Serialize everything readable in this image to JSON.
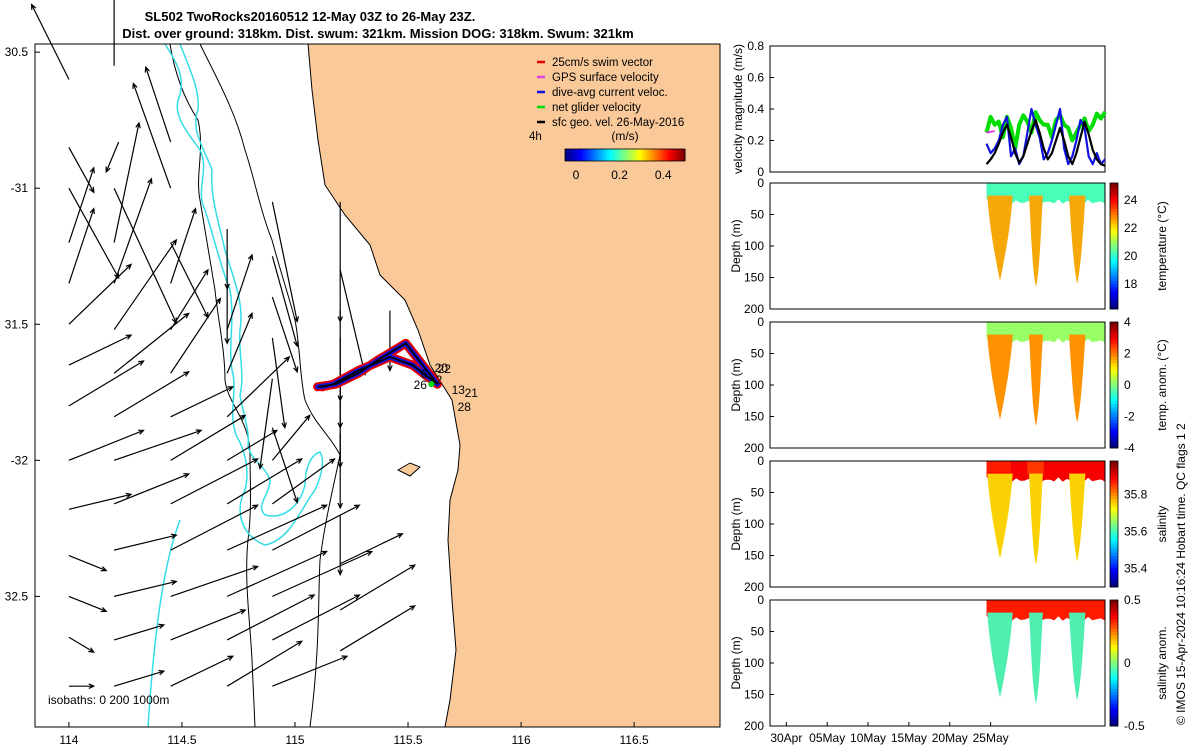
{
  "header": {
    "title_line1": "SL502 TwoRocks20160512 12-May 03Z to 26-May 23Z.",
    "title_line2": "Dist. over ground: 318km. Dist. swum: 321km. Mission DOG: 318km. Swum: 321km"
  },
  "credit": "© IMOS 15-Apr-2024 10:16:24 Hobart time. QC flags 1  2",
  "colors": {
    "land": "#F9C99A",
    "ocean": "#FFFFFF",
    "coast": "#000000",
    "isobath": "#000000",
    "shallow_isobath": "#33DDE6",
    "swim": "#E00000",
    "gps": "#E040E0",
    "dive": "#1010E0",
    "net": "#00DD00",
    "geo": "#000000"
  },
  "chart_data": [
    {
      "type": "map",
      "title": "Glider track and surface geostrophic velocity",
      "xlim": [
        113.85,
        116.88
      ],
      "ylim": [
        -32.98,
        -30.47
      ],
      "x_ticks": [
        114,
        114.5,
        115,
        115.5,
        116,
        116.5
      ],
      "x_tick_labels": [
        "114",
        "114.5",
        "115",
        "115.5",
        "116",
        "116.5"
      ],
      "y_ticks": [
        -30.5,
        -31,
        -31.5,
        -32,
        -32.5
      ],
      "y_tick_labels": [
        "30.5",
        "-31",
        "31.5",
        "-32",
        "32.5"
      ],
      "legend": [
        {
          "label": "25cm/s swim vector",
          "key": "swim"
        },
        {
          "label": "GPS surface velocity",
          "key": "gps"
        },
        {
          "label": "dive-avg current veloc.",
          "key": "dive"
        },
        {
          "label": "net glider velocity",
          "key": "net"
        },
        {
          "label": "sfc geo. vel. 26-May-2016",
          "key": "geo"
        }
      ],
      "legend_scale_label": "4h",
      "colorbar": {
        "label": "(m/s)",
        "range": [
          -0.05,
          0.5
        ],
        "tick_labels": [
          "0",
          "0.2",
          "0.4"
        ],
        "ticks": [
          0,
          0.2,
          0.4
        ]
      },
      "isobath_label": "isobaths: 0   200  1000m",
      "track_labels": [
        "2",
        "6",
        "13",
        "20",
        "22",
        "21",
        "26",
        "28"
      ],
      "track_points": [
        [
          115.1,
          -31.73
        ],
        [
          115.18,
          -31.72
        ],
        [
          115.28,
          -31.68
        ],
        [
          115.37,
          -31.63
        ],
        [
          115.49,
          -31.57
        ],
        [
          115.63,
          -31.72
        ],
        [
          115.52,
          -31.65
        ],
        [
          115.42,
          -31.62
        ],
        [
          115.28,
          -31.67
        ],
        [
          115.17,
          -31.72
        ],
        [
          115.12,
          -31.73
        ]
      ],
      "vector_scale_deg_per_ms": 0.55,
      "vectors": [
        [
          114.0,
          -30.6,
          -0.03,
          0.05
        ],
        [
          114.2,
          -30.55,
          0.0,
          0.06
        ],
        [
          114.0,
          -30.85,
          0.02,
          -0.03
        ],
        [
          114.22,
          -30.83,
          -0.01,
          -0.02
        ],
        [
          114.45,
          -30.83,
          -0.02,
          0.05
        ],
        [
          114.0,
          -31.0,
          0.04,
          -0.06
        ],
        [
          114.2,
          -31.0,
          0.05,
          -0.09
        ],
        [
          114.45,
          -31.0,
          -0.03,
          0.07
        ],
        [
          114.9,
          -31.05,
          0.02,
          -0.08
        ],
        [
          115.2,
          -31.05,
          0.0,
          -0.08
        ],
        [
          114.0,
          -31.2,
          0.02,
          0.05
        ],
        [
          114.2,
          -31.2,
          0.02,
          0.08
        ],
        [
          114.45,
          -31.2,
          0.03,
          -0.05
        ],
        [
          114.7,
          -31.15,
          0.0,
          -0.04
        ],
        [
          114.9,
          -31.25,
          0.02,
          -0.06
        ],
        [
          115.2,
          -31.3,
          0.02,
          -0.07
        ],
        [
          114.0,
          -31.35,
          0.02,
          0.05
        ],
        [
          114.2,
          -31.35,
          0.03,
          0.07
        ],
        [
          114.45,
          -31.35,
          0.02,
          0.05
        ],
        [
          114.7,
          -31.35,
          0.0,
          -0.04
        ],
        [
          114.9,
          -31.4,
          0.02,
          -0.05
        ],
        [
          115.2,
          -31.45,
          0.0,
          -0.06
        ],
        [
          115.42,
          -31.45,
          0.0,
          -0.04
        ],
        [
          114.0,
          -31.5,
          0.05,
          0.04
        ],
        [
          114.2,
          -31.52,
          0.05,
          0.06
        ],
        [
          114.45,
          -31.52,
          0.03,
          0.04
        ],
        [
          114.7,
          -31.52,
          0.02,
          0.05
        ],
        [
          114.9,
          -31.55,
          0.01,
          -0.06
        ],
        [
          115.2,
          -31.55,
          0.0,
          -0.06
        ],
        [
          114.0,
          -31.65,
          0.05,
          0.02
        ],
        [
          114.2,
          -31.68,
          0.06,
          0.04
        ],
        [
          114.45,
          -31.68,
          0.04,
          0.05
        ],
        [
          114.7,
          -31.68,
          0.02,
          0.04
        ],
        [
          114.9,
          -31.7,
          -0.01,
          -0.06
        ],
        [
          115.2,
          -31.75,
          0.0,
          -0.05
        ],
        [
          114.0,
          -31.8,
          0.06,
          0.03
        ],
        [
          114.2,
          -31.84,
          0.06,
          0.03
        ],
        [
          114.45,
          -31.84,
          0.05,
          0.02
        ],
        [
          114.7,
          -31.84,
          0.05,
          0.04
        ],
        [
          114.9,
          -31.88,
          0.02,
          -0.05
        ],
        [
          115.2,
          -31.9,
          0.0,
          -0.05
        ],
        [
          114.0,
          -32.0,
          0.06,
          0.02
        ],
        [
          114.2,
          -32.0,
          0.07,
          0.02
        ],
        [
          114.45,
          -32.0,
          0.06,
          0.03
        ],
        [
          114.7,
          -32.0,
          0.04,
          0.02
        ],
        [
          114.9,
          -32.0,
          0.03,
          0.03
        ],
        [
          114.0,
          -32.18,
          0.05,
          0.01
        ],
        [
          114.2,
          -32.16,
          0.06,
          0.02
        ],
        [
          114.45,
          -32.16,
          0.07,
          0.03
        ],
        [
          114.7,
          -32.16,
          0.06,
          0.03
        ],
        [
          114.9,
          -32.16,
          0.05,
          0.03
        ],
        [
          115.2,
          -32.2,
          0.0,
          -0.04
        ],
        [
          114.0,
          -32.35,
          0.03,
          -0.01
        ],
        [
          114.2,
          -32.33,
          0.05,
          0.01
        ],
        [
          114.45,
          -32.33,
          0.07,
          0.03
        ],
        [
          114.7,
          -32.33,
          0.08,
          0.03
        ],
        [
          114.9,
          -32.33,
          0.07,
          0.03
        ],
        [
          115.2,
          -32.38,
          0.05,
          0.02
        ],
        [
          114.0,
          -32.5,
          0.03,
          -0.01
        ],
        [
          114.2,
          -32.5,
          0.05,
          0.01
        ],
        [
          114.45,
          -32.5,
          0.07,
          0.02
        ],
        [
          114.7,
          -32.5,
          0.08,
          0.03
        ],
        [
          114.9,
          -32.5,
          0.08,
          0.03
        ],
        [
          115.2,
          -32.55,
          0.06,
          0.03
        ],
        [
          114.0,
          -32.65,
          0.02,
          -0.01
        ],
        [
          114.2,
          -32.66,
          0.04,
          0.01
        ],
        [
          114.45,
          -32.66,
          0.06,
          0.02
        ],
        [
          114.7,
          -32.66,
          0.07,
          0.03
        ],
        [
          114.9,
          -32.66,
          0.07,
          0.03
        ],
        [
          115.2,
          -32.7,
          0.06,
          0.03
        ],
        [
          114.0,
          -32.83,
          0.02,
          0.0
        ],
        [
          114.2,
          -32.83,
          0.04,
          0.01
        ],
        [
          114.45,
          -32.83,
          0.05,
          0.02
        ],
        [
          114.7,
          -32.83,
          0.06,
          0.03
        ],
        [
          114.9,
          -32.83,
          0.06,
          0.02
        ]
      ]
    },
    {
      "type": "line",
      "ylabel": "velocity magnitude (m/s)",
      "ylim": [
        0,
        0.8
      ],
      "y_ticks": [
        0,
        0.2,
        0.4,
        0.6,
        0.8
      ],
      "y_tick_labels": [
        "0",
        "0.2",
        "0.4",
        "0.6",
        "0.8"
      ],
      "xlim": [
        -14,
        27
      ],
      "series": [
        {
          "name": "net glider velocity",
          "key": "net",
          "x": [
            12.5,
            13,
            13.5,
            14,
            14.5,
            15,
            15.5,
            16,
            16.5,
            17,
            17.5,
            18,
            18.5,
            19,
            19.5,
            20,
            20.5,
            21,
            21.5,
            22,
            22.5,
            23,
            23.5,
            24,
            24.5,
            25,
            25.5,
            26,
            26.5,
            27
          ],
          "y": [
            0.25,
            0.35,
            0.3,
            0.32,
            0.22,
            0.35,
            0.28,
            0.15,
            0.3,
            0.36,
            0.32,
            0.25,
            0.38,
            0.33,
            0.3,
            0.3,
            0.22,
            0.33,
            0.36,
            0.3,
            0.28,
            0.2,
            0.25,
            0.3,
            0.34,
            0.26,
            0.3,
            0.37,
            0.34,
            0.38
          ]
        },
        {
          "name": "dive-avg current veloc.",
          "key": "dive",
          "x": [
            12.5,
            13,
            13.5,
            14,
            14.5,
            15,
            15.5,
            16,
            16.5,
            17,
            17.5,
            18,
            18.5,
            19,
            19.5,
            20,
            20.5,
            21,
            21.5,
            22,
            22.5,
            23,
            23.5,
            24,
            24.5,
            25,
            25.5,
            26,
            26.5,
            27
          ],
          "y": [
            0.18,
            0.12,
            0.15,
            0.2,
            0.3,
            0.35,
            0.1,
            0.15,
            0.05,
            0.1,
            0.25,
            0.4,
            0.3,
            0.22,
            0.08,
            0.12,
            0.2,
            0.3,
            0.4,
            0.15,
            0.05,
            0.1,
            0.2,
            0.33,
            0.28,
            0.1,
            0.05,
            0.12,
            0.05,
            0.08
          ]
        },
        {
          "name": "sfc geo. vel.",
          "key": "geo",
          "x": [
            12.5,
            13,
            13.5,
            14,
            14.5,
            15,
            15.5,
            16,
            16.5,
            17,
            17.5,
            18,
            18.5,
            19,
            19.5,
            20,
            20.5,
            21,
            21.5,
            22,
            22.5,
            23,
            23.5,
            24,
            24.5,
            25,
            25.5,
            26,
            26.5,
            27
          ],
          "y": [
            0.05,
            0.08,
            0.12,
            0.18,
            0.25,
            0.3,
            0.22,
            0.12,
            0.06,
            0.1,
            0.18,
            0.26,
            0.33,
            0.25,
            0.15,
            0.08,
            0.12,
            0.2,
            0.28,
            0.2,
            0.1,
            0.05,
            0.12,
            0.22,
            0.32,
            0.24,
            0.14,
            0.08,
            0.05,
            0.04
          ]
        },
        {
          "name": "GPS surface velocity",
          "key": "gps",
          "x": [
            12.5,
            13.5
          ],
          "y": [
            0.25,
            0.26
          ]
        }
      ]
    },
    {
      "type": "heatmap",
      "variable": "temperature",
      "ylabel": "Depth (m)",
      "ylim": [
        0,
        200
      ],
      "y_ticks": [
        0,
        50,
        100,
        150,
        200
      ],
      "y_tick_labels": [
        "0",
        "50",
        "100",
        "150",
        "200"
      ],
      "colorbar_label": "temperature (°C)",
      "colorbar_ticks": [
        18,
        20,
        22,
        24
      ],
      "colorbar_tick_labels": [
        "18",
        "20",
        "22",
        "24"
      ],
      "colorbar_range": [
        16.2,
        25.2
      ],
      "surface_value": 20.2,
      "deep_value": 23.0,
      "deep_dives": [
        {
          "start": 12.6,
          "end": 15.7,
          "max_depth": 155
        },
        {
          "start": 17.7,
          "end": 19.4,
          "max_depth": 165
        },
        {
          "start": 22.6,
          "end": 24.6,
          "max_depth": 160
        }
      ]
    },
    {
      "type": "heatmap",
      "variable": "temperature anomaly",
      "ylabel": "Depth (m)",
      "ylim": [
        0,
        200
      ],
      "y_ticks": [
        0,
        50,
        100,
        150,
        200
      ],
      "y_tick_labels": [
        "0",
        "50",
        "100",
        "150",
        "200"
      ],
      "colorbar_label": "temp. anom. (°C)",
      "colorbar_ticks": [
        -4,
        -2,
        0,
        2,
        4
      ],
      "colorbar_tick_labels": [
        "-4",
        "-2",
        "0",
        "2",
        "4"
      ],
      "colorbar_range": [
        -4,
        4
      ],
      "surface_value": 0.2,
      "deep_value": 2.2,
      "deep_dives": [
        {
          "start": 12.6,
          "end": 15.7,
          "max_depth": 155
        },
        {
          "start": 17.7,
          "end": 19.4,
          "max_depth": 165
        },
        {
          "start": 22.6,
          "end": 24.6,
          "max_depth": 160
        }
      ]
    },
    {
      "type": "heatmap",
      "variable": "salinity",
      "ylabel": "Depth (m)",
      "ylim": [
        0,
        200
      ],
      "y_ticks": [
        0,
        50,
        100,
        150,
        200
      ],
      "y_tick_labels": [
        "0",
        "50",
        "100",
        "150",
        "200"
      ],
      "colorbar_label": "salinity",
      "colorbar_ticks": [
        35.4,
        35.6,
        35.8
      ],
      "colorbar_tick_labels": [
        "35.4",
        "35.6",
        "35.8"
      ],
      "colorbar_range": [
        35.3,
        35.98
      ],
      "surface_value": 35.9,
      "deep_value": 35.72,
      "deep_dives": [
        {
          "start": 12.6,
          "end": 15.7,
          "max_depth": 155
        },
        {
          "start": 17.7,
          "end": 19.4,
          "max_depth": 165
        },
        {
          "start": 22.6,
          "end": 24.6,
          "max_depth": 160
        }
      ]
    },
    {
      "type": "heatmap",
      "variable": "salinity anomaly",
      "ylabel": "Depth (m)",
      "ylim": [
        0,
        200
      ],
      "y_ticks": [
        0,
        50,
        100,
        150,
        200
      ],
      "y_tick_labels": [
        "0",
        "50",
        "100",
        "150",
        "200"
      ],
      "colorbar_label": "salinity anom.",
      "colorbar_ticks": [
        -0.5,
        0,
        0.5
      ],
      "colorbar_tick_labels": [
        "-0.5",
        "0",
        "0.5"
      ],
      "colorbar_range": [
        -0.5,
        0.5
      ],
      "surface_value": 0.35,
      "deep_value": -0.15,
      "deep_dives": [
        {
          "start": 12.6,
          "end": 15.7,
          "max_depth": 155
        },
        {
          "start": 17.7,
          "end": 19.4,
          "max_depth": 165
        },
        {
          "start": 22.6,
          "end": 24.6,
          "max_depth": 160
        }
      ],
      "x_ticks": [
        -12,
        -7,
        -2,
        3,
        8,
        13
      ],
      "x_tick_labels": [
        "30Apr",
        "05May",
        "10May",
        "15May",
        "20May",
        "25May"
      ]
    }
  ]
}
